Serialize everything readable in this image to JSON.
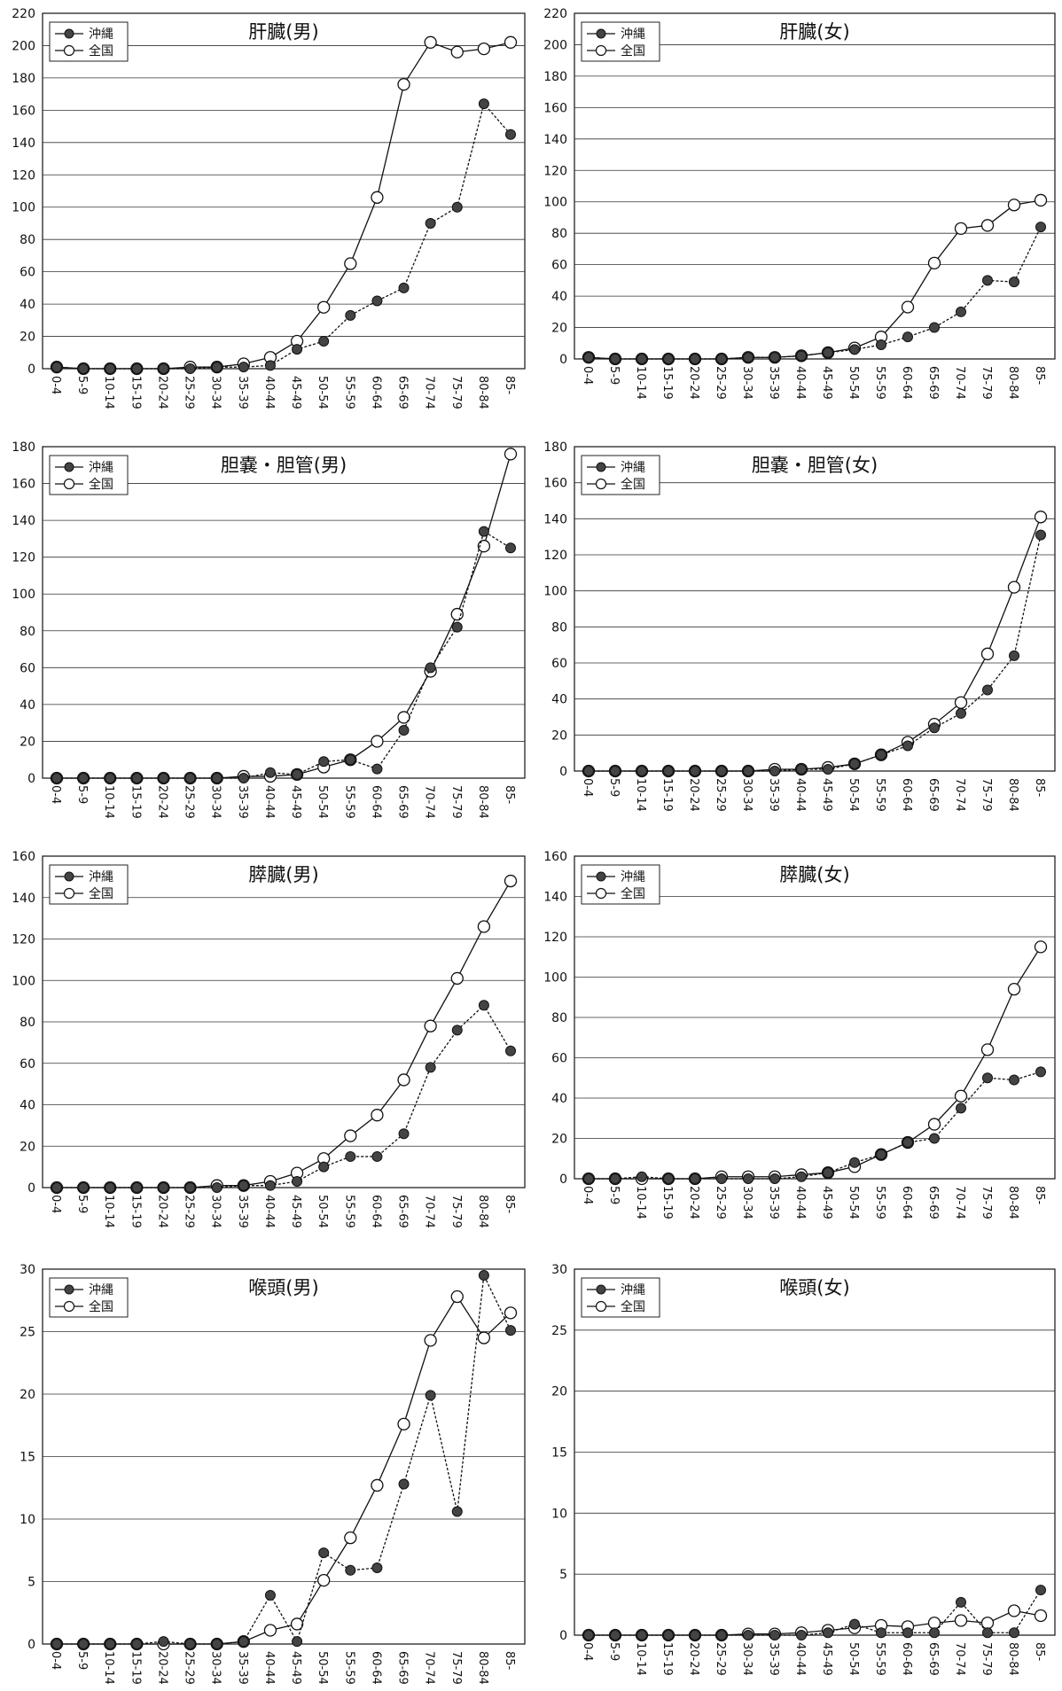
{
  "chart_data": [
    {
      "type": "line",
      "title": "肝臓(男)",
      "categories": [
        "0-4",
        "5-9",
        "10-14",
        "15-19",
        "20-24",
        "25-29",
        "30-34",
        "35-39",
        "40-44",
        "45-49",
        "50-54",
        "55-59",
        "60-64",
        "65-69",
        "70-74",
        "75-79",
        "80-84",
        "85-"
      ],
      "ylim": [
        0,
        220
      ],
      "yticks": [
        0,
        20,
        40,
        60,
        80,
        100,
        120,
        140,
        160,
        180,
        200,
        220
      ],
      "grid": true,
      "legend": "top-left",
      "series": [
        {
          "name": "沖縄",
          "marker": "filled",
          "values": [
            1,
            0,
            0,
            0,
            0,
            0,
            1,
            1,
            2,
            12,
            17,
            33,
            42,
            50,
            90,
            100,
            164,
            145
          ]
        },
        {
          "name": "全国",
          "marker": "open",
          "values": [
            1,
            0,
            0,
            0,
            0,
            1,
            1,
            3,
            7,
            17,
            38,
            65,
            106,
            176,
            202,
            196,
            198,
            202
          ]
        }
      ]
    },
    {
      "type": "line",
      "title": "肝臓(女)",
      "categories": [
        "0-4",
        "5-9",
        "10-14",
        "15-19",
        "20-24",
        "25-29",
        "30-34",
        "35-39",
        "40-44",
        "45-49",
        "50-54",
        "55-59",
        "60-64",
        "65-69",
        "70-74",
        "75-79",
        "80-84",
        "85-"
      ],
      "ylim": [
        0,
        220
      ],
      "yticks": [
        0,
        20,
        40,
        60,
        80,
        100,
        120,
        140,
        160,
        180,
        200,
        220
      ],
      "grid": true,
      "legend": "top-left",
      "series": [
        {
          "name": "沖縄",
          "marker": "filled",
          "values": [
            1,
            0,
            0,
            0,
            0,
            0,
            1,
            1,
            2,
            4,
            6,
            9,
            14,
            20,
            30,
            50,
            49,
            84
          ]
        },
        {
          "name": "全国",
          "marker": "open",
          "values": [
            1,
            0,
            0,
            0,
            0,
            0,
            1,
            1,
            2,
            4,
            7,
            14,
            33,
            61,
            83,
            85,
            98,
            101
          ]
        }
      ]
    },
    {
      "type": "line",
      "title": "胆嚢・胆管(男)",
      "categories": [
        "0-4",
        "5-9",
        "10-14",
        "15-19",
        "20-24",
        "25-29",
        "30-34",
        "35-39",
        "40-44",
        "45-49",
        "50-54",
        "55-59",
        "60-64",
        "65-69",
        "70-74",
        "75-79",
        "80-84",
        "85-"
      ],
      "ylim": [
        0,
        180
      ],
      "yticks": [
        0,
        20,
        40,
        60,
        80,
        100,
        120,
        140,
        160,
        180
      ],
      "grid": true,
      "legend": "top-left",
      "series": [
        {
          "name": "沖縄",
          "marker": "filled",
          "values": [
            0,
            0,
            0,
            0,
            0,
            0,
            0,
            0,
            3,
            2,
            9,
            10,
            5,
            26,
            60,
            82,
            134,
            125
          ]
        },
        {
          "name": "全国",
          "marker": "open",
          "values": [
            0,
            0,
            0,
            0,
            0,
            0,
            0,
            1,
            1,
            2,
            6,
            10,
            20,
            33,
            58,
            89,
            126,
            176
          ]
        }
      ]
    },
    {
      "type": "line",
      "title": "胆嚢・胆管(女)",
      "categories": [
        "0-4",
        "5-9",
        "10-14",
        "15-19",
        "20-24",
        "25-29",
        "30-34",
        "35-39",
        "40-44",
        "45-49",
        "50-54",
        "55-59",
        "60-64",
        "65-69",
        "70-74",
        "75-79",
        "80-84",
        "85-"
      ],
      "ylim": [
        0,
        180
      ],
      "yticks": [
        0,
        20,
        40,
        60,
        80,
        100,
        120,
        140,
        160,
        180
      ],
      "grid": true,
      "legend": "top-left",
      "series": [
        {
          "name": "沖縄",
          "marker": "filled",
          "values": [
            0,
            0,
            0,
            0,
            0,
            0,
            0,
            0,
            1,
            1,
            4,
            9,
            14,
            24,
            32,
            45,
            64,
            131
          ]
        },
        {
          "name": "全国",
          "marker": "open",
          "values": [
            0,
            0,
            0,
            0,
            0,
            0,
            0,
            1,
            1,
            2,
            4,
            9,
            16,
            26,
            38,
            65,
            102,
            141
          ]
        }
      ]
    },
    {
      "type": "line",
      "title": "膵臓(男)",
      "categories": [
        "0-4",
        "5-9",
        "10-14",
        "15-19",
        "20-24",
        "25-29",
        "30-34",
        "35-39",
        "40-44",
        "45-49",
        "50-54",
        "55-59",
        "60-64",
        "65-69",
        "70-74",
        "75-79",
        "80-84",
        "85-"
      ],
      "ylim": [
        0,
        160
      ],
      "yticks": [
        0,
        20,
        40,
        60,
        80,
        100,
        120,
        140,
        160
      ],
      "grid": true,
      "legend": "top-left",
      "series": [
        {
          "name": "沖縄",
          "marker": "filled",
          "values": [
            0,
            0,
            0,
            0,
            0,
            0,
            0,
            1,
            1,
            3,
            10,
            15,
            15,
            26,
            58,
            76,
            88,
            66
          ]
        },
        {
          "name": "全国",
          "marker": "open",
          "values": [
            0,
            0,
            0,
            0,
            0,
            0,
            1,
            1,
            3,
            7,
            14,
            25,
            35,
            52,
            78,
            101,
            126,
            148
          ]
        }
      ]
    },
    {
      "type": "line",
      "title": "膵臓(女)",
      "categories": [
        "0-4",
        "5-9",
        "10-14",
        "15-19",
        "20-24",
        "25-29",
        "30-34",
        "35-39",
        "40-44",
        "45-49",
        "50-54",
        "55-59",
        "60-64",
        "65-69",
        "70-74",
        "75-79",
        "80-84",
        "85-"
      ],
      "ylim": [
        0,
        160
      ],
      "yticks": [
        0,
        20,
        40,
        60,
        80,
        100,
        120,
        140,
        160
      ],
      "grid": true,
      "legend": "top-left",
      "series": [
        {
          "name": "沖縄",
          "marker": "filled",
          "values": [
            0,
            0,
            1,
            0,
            0,
            0,
            0,
            0,
            1,
            3,
            8,
            12,
            18,
            20,
            35,
            50,
            49,
            53
          ]
        },
        {
          "name": "全国",
          "marker": "open",
          "values": [
            0,
            0,
            0,
            0,
            0,
            1,
            1,
            1,
            2,
            3,
            6,
            12,
            18,
            27,
            41,
            64,
            94,
            115
          ]
        }
      ]
    },
    {
      "type": "line",
      "title": "喉頭(男)",
      "categories": [
        "0-4",
        "5-9",
        "10-14",
        "15-19",
        "20-24",
        "25-29",
        "30-34",
        "35-39",
        "40-44",
        "45-49",
        "50-54",
        "55-59",
        "60-64",
        "65-69",
        "70-74",
        "75-79",
        "80-84",
        "85-"
      ],
      "ylim": [
        0,
        30
      ],
      "yticks": [
        0,
        5,
        10,
        15,
        20,
        25,
        30
      ],
      "grid": true,
      "legend": "top-left",
      "series": [
        {
          "name": "沖縄",
          "marker": "filled",
          "values": [
            0,
            0,
            0,
            0,
            0.2,
            0,
            0,
            0.2,
            3.9,
            0.2,
            7.3,
            5.9,
            6.1,
            12.8,
            19.9,
            10.6,
            29.5,
            25.1
          ]
        },
        {
          "name": "全国",
          "marker": "open",
          "values": [
            0,
            0,
            0,
            0,
            0,
            0,
            0,
            0.2,
            1.1,
            1.6,
            5.1,
            8.5,
            12.7,
            17.6,
            24.3,
            27.8,
            24.5,
            26.5
          ]
        }
      ]
    },
    {
      "type": "line",
      "title": "喉頭(女)",
      "categories": [
        "0-4",
        "5-9",
        "10-14",
        "15-19",
        "20-24",
        "25-29",
        "30-34",
        "35-39",
        "40-44",
        "45-49",
        "50-54",
        "55-59",
        "60-64",
        "65-69",
        "70-74",
        "75-79",
        "80-84",
        "85-"
      ],
      "ylim": [
        0,
        30
      ],
      "yticks": [
        0,
        5,
        10,
        15,
        20,
        25,
        30
      ],
      "grid": true,
      "legend": "top-left",
      "series": [
        {
          "name": "沖縄",
          "marker": "filled",
          "values": [
            0,
            0,
            0,
            0,
            0,
            0,
            0,
            0,
            0,
            0.2,
            0.9,
            0.2,
            0.2,
            0.2,
            2.7,
            0.2,
            0.2,
            3.7
          ]
        },
        {
          "name": "全国",
          "marker": "open",
          "values": [
            0,
            0,
            0,
            0,
            0,
            0,
            0.1,
            0.1,
            0.2,
            0.4,
            0.6,
            0.8,
            0.7,
            1.0,
            1.2,
            1.0,
            2.0,
            1.6
          ]
        }
      ]
    }
  ]
}
